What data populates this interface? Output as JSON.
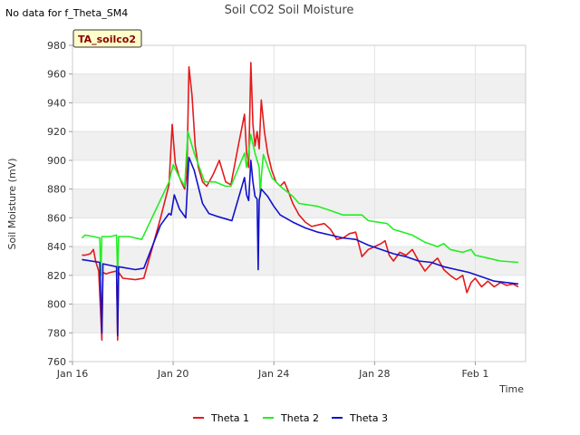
{
  "no_data_note": "No data for f_Theta_SM4",
  "site_tag": "TA_soilco2",
  "colors": {
    "band": "#f0f0f0",
    "tag_bg": "#ffffcc",
    "tag_text": "#8b0000"
  },
  "chart_data": {
    "type": "line",
    "title": "Soil CO2 Soil Moisture",
    "xlabel": "Time",
    "ylabel": "Soil Moisture (mV)",
    "xlim": [
      "2024-01-16",
      "2024-02-03"
    ],
    "ylim": [
      760,
      980
    ],
    "x_ticks": [
      {
        "date": "2024-01-16",
        "label": "Jan 16"
      },
      {
        "date": "2024-01-20",
        "label": "Jan 20"
      },
      {
        "date": "2024-01-24",
        "label": "Jan 24"
      },
      {
        "date": "2024-01-28",
        "label": "Jan 28"
      },
      {
        "date": "2024-02-01",
        "label": "Feb 1"
      }
    ],
    "y_ticks": [
      760,
      780,
      800,
      820,
      840,
      860,
      880,
      900,
      920,
      940,
      960,
      980
    ],
    "grid": true,
    "legend_position": "bottom",
    "series": [
      {
        "name": "Theta 1",
        "color": "#e31a1c",
        "points": [
          [
            "2024-01-16 09:00",
            834
          ],
          [
            "2024-01-16 12:00",
            834
          ],
          [
            "2024-01-16 17:00",
            835
          ],
          [
            "2024-01-16 20:00",
            838
          ],
          [
            "2024-01-16 22:00",
            830
          ],
          [
            "2024-01-17 01:00",
            823
          ],
          [
            "2024-01-17 04:00",
            775
          ],
          [
            "2024-01-17 05:00",
            822
          ],
          [
            "2024-01-17 08:00",
            821
          ],
          [
            "2024-01-17 12:00",
            822
          ],
          [
            "2024-01-17 18:00",
            823
          ],
          [
            "2024-01-17 19:00",
            775
          ],
          [
            "2024-01-17 20:00",
            822
          ],
          [
            "2024-01-18 00:00",
            818
          ],
          [
            "2024-01-18 12:00",
            817
          ],
          [
            "2024-01-18 20:00",
            818
          ],
          [
            "2024-01-19 12:00",
            860
          ],
          [
            "2024-01-19 20:00",
            883
          ],
          [
            "2024-01-19 23:00",
            925
          ],
          [
            "2024-01-20 02:00",
            898
          ],
          [
            "2024-01-20 06:00",
            888
          ],
          [
            "2024-01-20 09:00",
            883
          ],
          [
            "2024-01-20 11:00",
            880
          ],
          [
            "2024-01-20 13:00",
            890
          ],
          [
            "2024-01-20 15:00",
            965
          ],
          [
            "2024-01-20 18:00",
            945
          ],
          [
            "2024-01-20 21:00",
            910
          ],
          [
            "2024-01-21 00:00",
            895
          ],
          [
            "2024-01-21 04:00",
            885
          ],
          [
            "2024-01-21 08:00",
            882
          ],
          [
            "2024-01-21 14:00",
            890
          ],
          [
            "2024-01-21 20:00",
            900
          ],
          [
            "2024-01-22 02:00",
            885
          ],
          [
            "2024-01-22 07:00",
            883
          ],
          [
            "2024-01-22 14:00",
            910
          ],
          [
            "2024-01-22 20:00",
            932
          ],
          [
            "2024-01-22 22:00",
            905
          ],
          [
            "2024-01-23 00:00",
            895
          ],
          [
            "2024-01-23 02:00",
            968
          ],
          [
            "2024-01-23 04:00",
            925
          ],
          [
            "2024-01-23 06:00",
            910
          ],
          [
            "2024-01-23 08:00",
            920
          ],
          [
            "2024-01-23 10:00",
            908
          ],
          [
            "2024-01-23 12:00",
            942
          ],
          [
            "2024-01-23 15:00",
            920
          ],
          [
            "2024-01-23 18:00",
            905
          ],
          [
            "2024-01-23 22:00",
            893
          ],
          [
            "2024-01-24 02:00",
            885
          ],
          [
            "2024-01-24 06:00",
            882
          ],
          [
            "2024-01-24 10:00",
            885
          ],
          [
            "2024-01-24 14:00",
            878
          ],
          [
            "2024-01-24 18:00",
            870
          ],
          [
            "2024-01-25 00:00",
            862
          ],
          [
            "2024-01-25 06:00",
            857
          ],
          [
            "2024-01-25 12:00",
            854
          ],
          [
            "2024-01-26 00:00",
            856
          ],
          [
            "2024-01-26 06:00",
            852
          ],
          [
            "2024-01-26 12:00",
            845
          ],
          [
            "2024-01-26 18:00",
            846
          ],
          [
            "2024-01-27 00:00",
            849
          ],
          [
            "2024-01-27 06:00",
            850
          ],
          [
            "2024-01-27 12:00",
            833
          ],
          [
            "2024-01-27 18:00",
            838
          ],
          [
            "2024-01-28 00:00",
            840
          ],
          [
            "2024-01-28 06:00",
            842
          ],
          [
            "2024-01-28 10:00",
            844
          ],
          [
            "2024-01-28 14:00",
            834
          ],
          [
            "2024-01-28 18:00",
            830
          ],
          [
            "2024-01-29 00:00",
            836
          ],
          [
            "2024-01-29 06:00",
            834
          ],
          [
            "2024-01-29 12:00",
            838
          ],
          [
            "2024-01-29 18:00",
            830
          ],
          [
            "2024-01-30 00:00",
            823
          ],
          [
            "2024-01-30 06:00",
            828
          ],
          [
            "2024-01-30 12:00",
            832
          ],
          [
            "2024-01-30 18:00",
            824
          ],
          [
            "2024-01-31 00:00",
            820
          ],
          [
            "2024-01-31 06:00",
            817
          ],
          [
            "2024-01-31 12:00",
            820
          ],
          [
            "2024-01-31 16:00",
            808
          ],
          [
            "2024-01-31 20:00",
            815
          ],
          [
            "2024-02-01 00:00",
            818
          ],
          [
            "2024-02-01 06:00",
            812
          ],
          [
            "2024-02-01 12:00",
            816
          ],
          [
            "2024-02-01 18:00",
            812
          ],
          [
            "2024-02-02 00:00",
            815
          ],
          [
            "2024-02-02 06:00",
            813
          ],
          [
            "2024-02-02 12:00",
            814
          ],
          [
            "2024-02-02 17:00",
            812
          ]
        ]
      },
      {
        "name": "Theta 2",
        "color": "#22ee22",
        "points": [
          [
            "2024-01-16 09:00",
            846
          ],
          [
            "2024-01-16 12:00",
            848
          ],
          [
            "2024-01-16 20:00",
            847
          ],
          [
            "2024-01-17 02:00",
            846
          ],
          [
            "2024-01-17 03:00",
            820
          ],
          [
            "2024-01-17 04:00",
            847
          ],
          [
            "2024-01-17 12:00",
            847
          ],
          [
            "2024-01-17 18:00",
            848
          ],
          [
            "2024-01-17 19:00",
            820
          ],
          [
            "2024-01-17 20:00",
            847
          ],
          [
            "2024-01-18 06:00",
            847
          ],
          [
            "2024-01-18 18:00",
            845
          ],
          [
            "2024-01-19 20:00",
            885
          ],
          [
            "2024-01-20 00:00",
            897
          ],
          [
            "2024-01-20 06:00",
            888
          ],
          [
            "2024-01-20 11:00",
            882
          ],
          [
            "2024-01-20 14:00",
            920
          ],
          [
            "2024-01-20 20:00",
            905
          ],
          [
            "2024-01-21 06:00",
            885
          ],
          [
            "2024-01-21 16:00",
            885
          ],
          [
            "2024-01-22 02:00",
            882
          ],
          [
            "2024-01-22 07:00",
            882
          ],
          [
            "2024-01-22 20:00",
            905
          ],
          [
            "2024-01-22 22:00",
            895
          ],
          [
            "2024-01-23 02:00",
            918
          ],
          [
            "2024-01-23 06:00",
            905
          ],
          [
            "2024-01-23 10:00",
            895
          ],
          [
            "2024-01-23 11:00",
            875
          ],
          [
            "2024-01-23 12:00",
            888
          ],
          [
            "2024-01-23 14:00",
            904
          ],
          [
            "2024-01-23 22:00",
            888
          ],
          [
            "2024-01-24 06:00",
            882
          ],
          [
            "2024-01-24 18:00",
            875
          ],
          [
            "2024-01-25 00:00",
            870
          ],
          [
            "2024-01-25 18:00",
            868
          ],
          [
            "2024-01-26 06:00",
            865
          ],
          [
            "2024-01-26 18:00",
            862
          ],
          [
            "2024-01-27 12:00",
            862
          ],
          [
            "2024-01-27 18:00",
            858
          ],
          [
            "2024-01-28 12:00",
            856
          ],
          [
            "2024-01-28 18:00",
            852
          ],
          [
            "2024-01-29 12:00",
            848
          ],
          [
            "2024-01-30 00:00",
            843
          ],
          [
            "2024-01-30 12:00",
            840
          ],
          [
            "2024-01-30 18:00",
            842
          ],
          [
            "2024-01-31 00:00",
            838
          ],
          [
            "2024-01-31 12:00",
            836
          ],
          [
            "2024-01-31 20:00",
            838
          ],
          [
            "2024-02-01 00:00",
            834
          ],
          [
            "2024-02-01 12:00",
            832
          ],
          [
            "2024-02-02 00:00",
            830
          ],
          [
            "2024-02-02 17:00",
            829
          ]
        ]
      },
      {
        "name": "Theta 3",
        "color": "#1111cc",
        "points": [
          [
            "2024-01-16 09:00",
            831
          ],
          [
            "2024-01-17 02:00",
            829
          ],
          [
            "2024-01-17 04:00",
            780
          ],
          [
            "2024-01-17 05:00",
            828
          ],
          [
            "2024-01-17 18:00",
            826
          ],
          [
            "2024-01-17 19:00",
            778
          ],
          [
            "2024-01-17 20:00",
            826
          ],
          [
            "2024-01-18 12:00",
            824
          ],
          [
            "2024-01-18 20:00",
            825
          ],
          [
            "2024-01-19 12:00",
            855
          ],
          [
            "2024-01-19 20:00",
            863
          ],
          [
            "2024-01-19 22:00",
            862
          ],
          [
            "2024-01-20 01:00",
            876
          ],
          [
            "2024-01-20 06:00",
            866
          ],
          [
            "2024-01-20 12:00",
            860
          ],
          [
            "2024-01-20 15:00",
            902
          ],
          [
            "2024-01-20 20:00",
            893
          ],
          [
            "2024-01-21 04:00",
            870
          ],
          [
            "2024-01-21 10:00",
            863
          ],
          [
            "2024-01-21 18:00",
            861
          ],
          [
            "2024-01-22 08:00",
            858
          ],
          [
            "2024-01-22 20:00",
            888
          ],
          [
            "2024-01-22 22:00",
            876
          ],
          [
            "2024-01-23 00:00",
            872
          ],
          [
            "2024-01-23 02:00",
            900
          ],
          [
            "2024-01-23 04:00",
            885
          ],
          [
            "2024-01-23 06:00",
            875
          ],
          [
            "2024-01-23 08:00",
            873
          ],
          [
            "2024-01-23 09:00",
            824
          ],
          [
            "2024-01-23 10:00",
            872
          ],
          [
            "2024-01-23 12:00",
            880
          ],
          [
            "2024-01-23 18:00",
            875
          ],
          [
            "2024-01-24 00:00",
            868
          ],
          [
            "2024-01-24 06:00",
            862
          ],
          [
            "2024-01-24 18:00",
            857
          ],
          [
            "2024-01-25 06:00",
            853
          ],
          [
            "2024-01-25 18:00",
            850
          ],
          [
            "2024-01-26 06:00",
            848
          ],
          [
            "2024-01-26 18:00",
            846
          ],
          [
            "2024-01-27 06:00",
            845
          ],
          [
            "2024-01-27 18:00",
            841
          ],
          [
            "2024-01-28 06:00",
            838
          ],
          [
            "2024-01-28 18:00",
            835
          ],
          [
            "2024-01-29 06:00",
            833
          ],
          [
            "2024-01-29 18:00",
            830
          ],
          [
            "2024-01-30 06:00",
            829
          ],
          [
            "2024-01-30 18:00",
            826
          ],
          [
            "2024-01-31 06:00",
            824
          ],
          [
            "2024-01-31 18:00",
            822
          ],
          [
            "2024-02-01 06:00",
            819
          ],
          [
            "2024-02-01 18:00",
            816
          ],
          [
            "2024-02-02 06:00",
            815
          ],
          [
            "2024-02-02 17:00",
            814
          ]
        ]
      }
    ]
  }
}
